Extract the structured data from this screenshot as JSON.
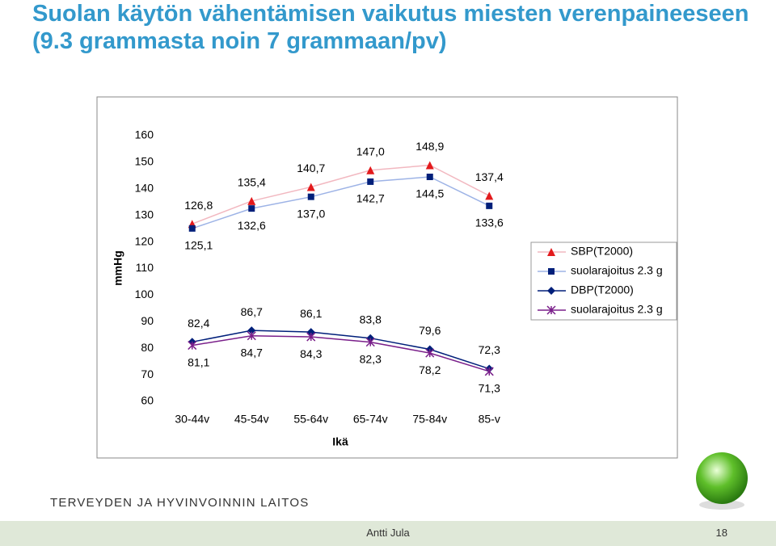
{
  "chart_data": {
    "type": "line",
    "title": "Suolan käytön vähentämisen vaikutus miesten verenpaineeseen (9.3 grammasta noin 7 grammaan/pv)",
    "y_label": "mmHg",
    "x_label": "Ikä",
    "categories": [
      "30-44v",
      "45-54v",
      "55-64v",
      "65-74v",
      "75-84v",
      "85-v"
    ],
    "ylim": [
      60,
      160
    ],
    "yticks": [
      60,
      70,
      80,
      90,
      100,
      110,
      120,
      130,
      140,
      150,
      160
    ],
    "legend_position": "right",
    "series": [
      {
        "name": "SBP(T2000)",
        "color": "#e31a1c",
        "line_color": "#f2b8c0",
        "marker": "triangle",
        "label_side": "above",
        "values": [
          126.8,
          135.4,
          140.7,
          147.0,
          148.9,
          137.4
        ],
        "value_labels": [
          "126,8",
          "135,4",
          "140,7",
          "147,0",
          "148,9",
          "137,4"
        ]
      },
      {
        "name": "suolarajoitus 2.3 g",
        "color": "#001f7a",
        "line_color": "#9db3e6",
        "marker": "square",
        "label_side": "below",
        "values": [
          125.1,
          132.6,
          137.0,
          142.7,
          144.5,
          133.6
        ],
        "value_labels": [
          "125,1",
          "132,6",
          "137,0",
          "142,7",
          "144,5",
          "133,6"
        ]
      },
      {
        "name": "DBP(T2000)",
        "color": "#001f7a",
        "line_color": "#001f7a",
        "marker": "diamond",
        "label_side": "above",
        "values": [
          82.4,
          86.7,
          86.1,
          83.8,
          79.6,
          72.3
        ],
        "value_labels": [
          "82,4",
          "86,7",
          "86,1",
          "83,8",
          "79,6",
          "72,3"
        ]
      },
      {
        "name": "suolarajoitus 2.3 g",
        "color": "#7a1f8a",
        "line_color": "#7a1f8a",
        "marker": "star",
        "label_side": "below",
        "values": [
          81.1,
          84.7,
          84.3,
          82.3,
          78.2,
          71.3
        ],
        "value_labels": [
          "81,1",
          "84,7",
          "84,3",
          "82,3",
          "78,2",
          "71,3"
        ]
      }
    ]
  },
  "footer": {
    "organization": "TERVEYDEN JA HYVINVOINNIN LAITOS",
    "author": "Antti Jula",
    "page": "18"
  }
}
